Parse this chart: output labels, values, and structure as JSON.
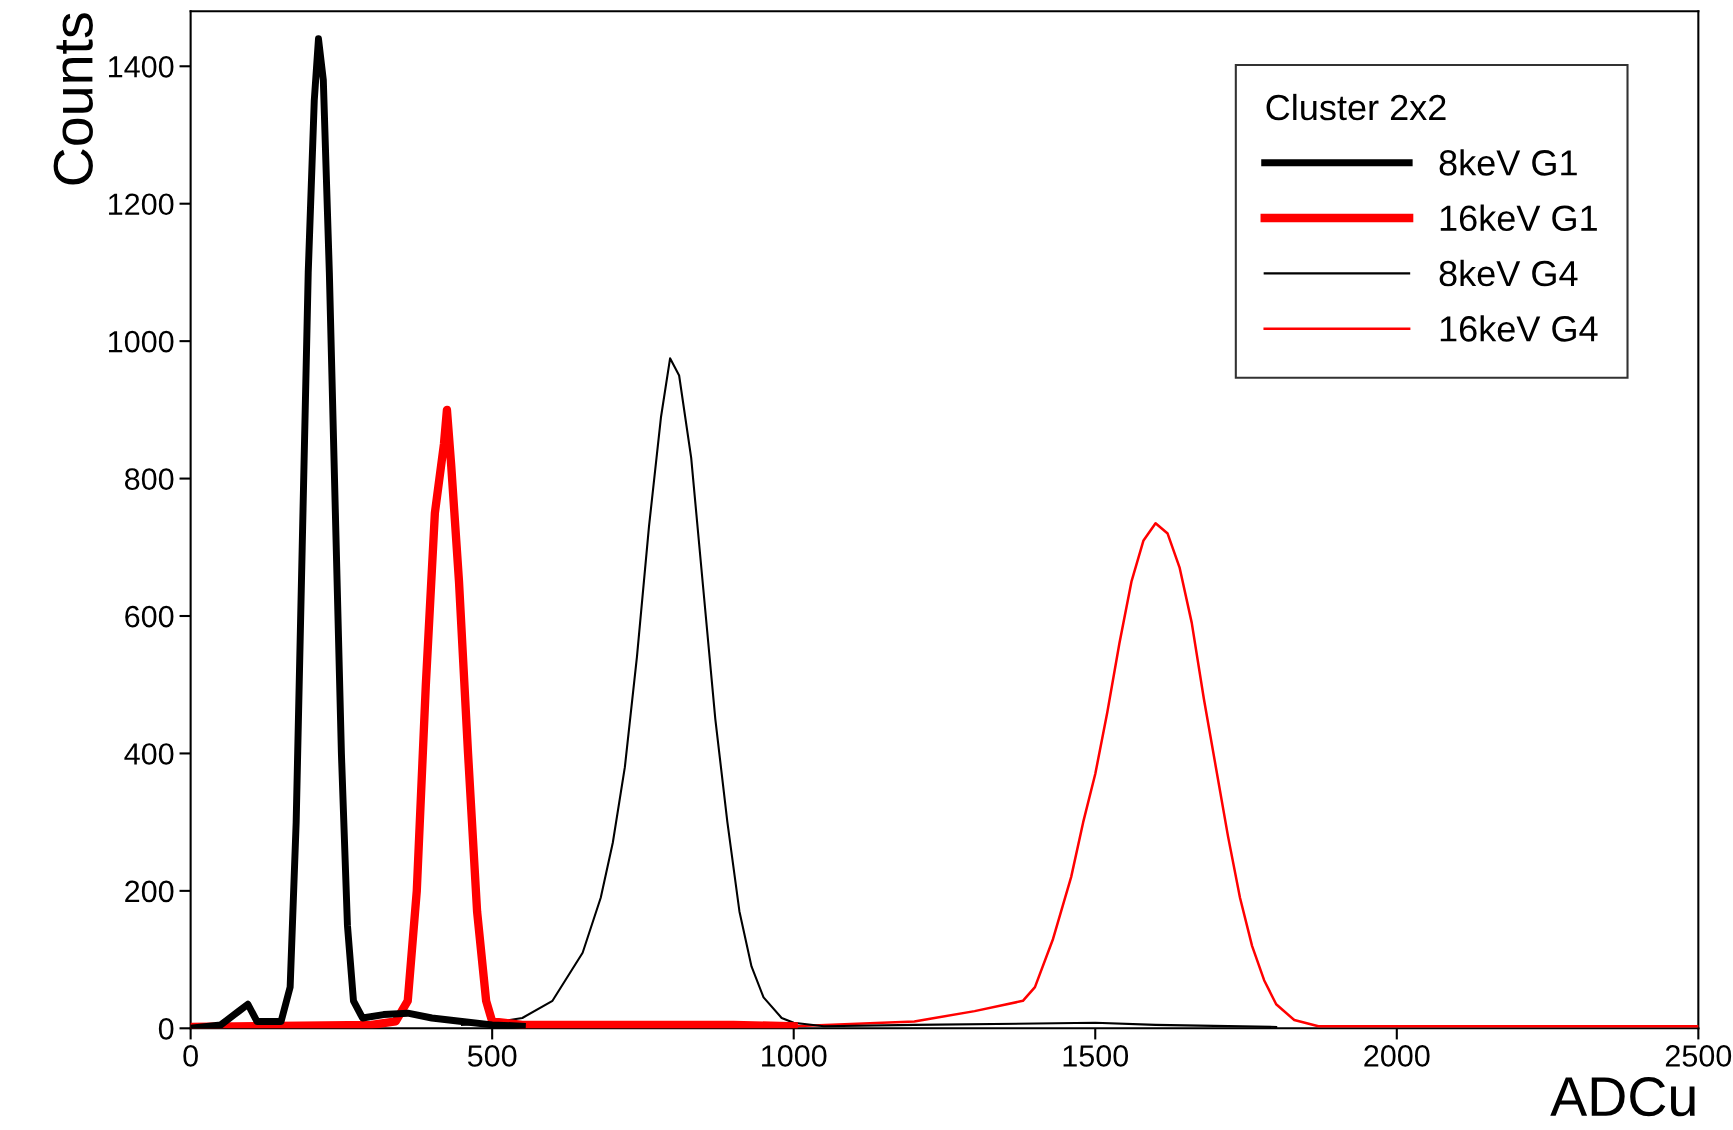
{
  "chart_data": {
    "type": "line",
    "xlabel": "ADCu",
    "ylabel": "Counts",
    "legend_title": "Cluster 2x2",
    "legend": "top right",
    "grid": false,
    "marker": "none",
    "line_style": "solid",
    "xlim": [
      0,
      2500
    ],
    "xticks": [
      0,
      500,
      1000,
      1500,
      2000,
      2500
    ],
    "ylim": [
      0,
      1480
    ],
    "yticks": [
      0,
      200,
      400,
      600,
      800,
      1000,
      1200,
      1400
    ],
    "series": [
      {
        "name": "8keV G1",
        "color": "#000000",
        "x": [
          0,
          50,
          80,
          95,
          110,
          150,
          165,
          175,
          185,
          195,
          205,
          212,
          220,
          230,
          240,
          250,
          260,
          270,
          285,
          320,
          360,
          400,
          450,
          500,
          550
        ],
        "values": [
          0,
          5,
          25,
          35,
          10,
          10,
          60,
          300,
          700,
          1100,
          1350,
          1440,
          1380,
          1100,
          750,
          400,
          150,
          40,
          15,
          20,
          22,
          15,
          10,
          5,
          3
        ]
      },
      {
        "name": "16keV G1",
        "color": "#ff0000",
        "x": [
          0,
          300,
          340,
          360,
          375,
          390,
          405,
          420,
          425,
          432,
          445,
          460,
          475,
          490,
          500,
          550,
          900,
          1000
        ],
        "values": [
          2,
          5,
          10,
          40,
          200,
          500,
          750,
          850,
          900,
          820,
          650,
          400,
          170,
          40,
          10,
          5,
          5,
          3
        ]
      },
      {
        "name": "8keV G4",
        "color": "#000000",
        "x": [
          450,
          500,
          550,
          600,
          650,
          680,
          700,
          720,
          740,
          760,
          780,
          795,
          810,
          830,
          850,
          870,
          890,
          910,
          930,
          950,
          980,
          1000,
          1050,
          1200,
          1500,
          1600,
          1800
        ],
        "values": [
          5,
          8,
          15,
          40,
          110,
          190,
          270,
          380,
          540,
          730,
          890,
          975,
          950,
          830,
          640,
          450,
          300,
          170,
          90,
          45,
          15,
          8,
          3,
          5,
          8,
          5,
          2
        ]
      },
      {
        "name": "16keV G4",
        "color": "#ff0000",
        "x": [
          1000,
          1200,
          1300,
          1380,
          1400,
          1430,
          1460,
          1480,
          1500,
          1520,
          1540,
          1560,
          1580,
          1600,
          1620,
          1640,
          1660,
          1680,
          1700,
          1720,
          1740,
          1760,
          1780,
          1800,
          1830,
          1870,
          2000,
          2500
        ],
        "values": [
          3,
          10,
          25,
          40,
          60,
          130,
          220,
          300,
          370,
          460,
          560,
          650,
          710,
          735,
          720,
          670,
          590,
          480,
          380,
          280,
          190,
          120,
          70,
          35,
          12,
          3,
          3,
          3
        ]
      }
    ]
  }
}
